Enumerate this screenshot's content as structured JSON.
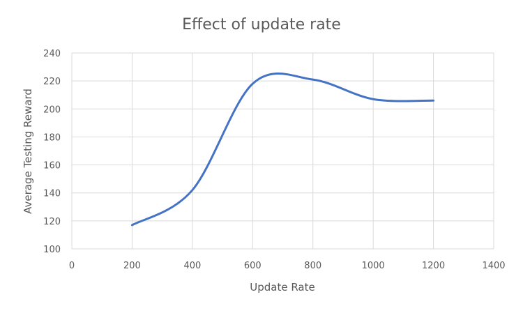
{
  "chart_data": {
    "type": "line",
    "title": "Effect of update rate",
    "xlabel": "Update Rate",
    "ylabel": "Average Testing Reward",
    "xlim": [
      0,
      1400
    ],
    "ylim": [
      100,
      240
    ],
    "xticks": [
      0,
      200,
      400,
      600,
      800,
      1000,
      1200,
      1400
    ],
    "yticks": [
      100,
      120,
      140,
      160,
      180,
      200,
      220,
      240
    ],
    "grid": true,
    "legend": "none",
    "smooth": true,
    "series": [
      {
        "color": "#4472c4",
        "x": [
          200,
          400,
          600,
          800,
          1000,
          1200
        ],
        "y": [
          117,
          142,
          218,
          221,
          207,
          206
        ]
      }
    ]
  }
}
